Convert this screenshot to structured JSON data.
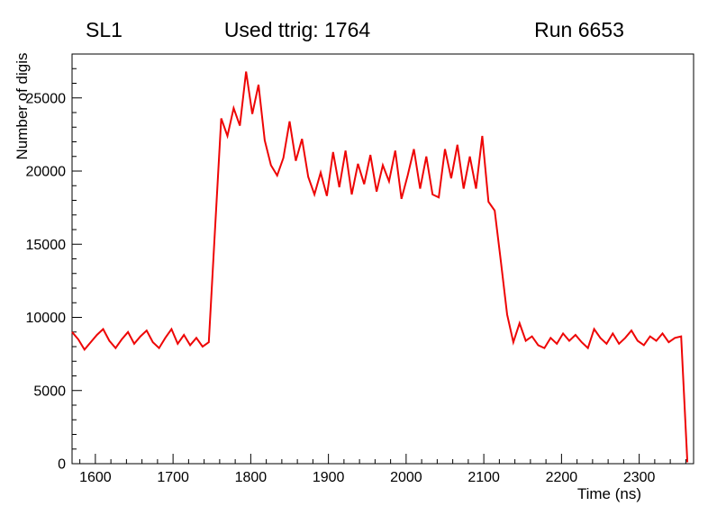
{
  "header": {
    "left": "SL1",
    "right": "Run 6653"
  },
  "chart_data": {
    "type": "line",
    "title": "Used ttrig: 1764",
    "xlabel": "Time (ns)",
    "ylabel": "Number of digis",
    "xlim": [
      1570,
      2370
    ],
    "ylim": [
      0,
      28000
    ],
    "x_major_ticks": [
      1600,
      1700,
      1800,
      1900,
      2000,
      2100,
      2200,
      2300
    ],
    "x_minor_step": 20,
    "y_major_ticks": [
      0,
      5000,
      10000,
      15000,
      20000,
      25000
    ],
    "y_minor_step": 1000,
    "grid": false,
    "legend": null,
    "line_color": "#ee0505",
    "axis_color": "#000000",
    "background_color": "#ffffff",
    "x": [
      1570,
      1578,
      1586,
      1594,
      1602,
      1610,
      1618,
      1626,
      1634,
      1642,
      1650,
      1658,
      1666,
      1674,
      1682,
      1690,
      1698,
      1706,
      1714,
      1722,
      1730,
      1738,
      1746,
      1754,
      1762,
      1770,
      1778,
      1786,
      1794,
      1802,
      1810,
      1818,
      1826,
      1834,
      1842,
      1850,
      1858,
      1866,
      1874,
      1882,
      1890,
      1898,
      1906,
      1914,
      1922,
      1930,
      1938,
      1946,
      1954,
      1962,
      1970,
      1978,
      1986,
      1994,
      2002,
      2010,
      2018,
      2026,
      2034,
      2042,
      2050,
      2058,
      2066,
      2074,
      2082,
      2090,
      2098,
      2106,
      2114,
      2122,
      2130,
      2138,
      2146,
      2154,
      2162,
      2170,
      2178,
      2186,
      2194,
      2202,
      2210,
      2218,
      2226,
      2234,
      2242,
      2250,
      2258,
      2266,
      2274,
      2282,
      2290,
      2298,
      2306,
      2314,
      2322,
      2330,
      2338,
      2346,
      2354,
      2362
    ],
    "y": [
      9000,
      8500,
      7800,
      8300,
      8800,
      9200,
      8400,
      7900,
      8500,
      9000,
      8200,
      8700,
      9100,
      8300,
      7900,
      8600,
      9200,
      8200,
      8800,
      8100,
      8600,
      8000,
      8300,
      16000,
      23600,
      22400,
      24300,
      23100,
      26800,
      23900,
      25900,
      22100,
      20400,
      19700,
      20900,
      23400,
      20700,
      22200,
      19600,
      18400,
      19900,
      18300,
      21300,
      18900,
      21400,
      18400,
      20500,
      19100,
      21100,
      18600,
      20400,
      19300,
      21400,
      18100,
      19700,
      21500,
      18800,
      21000,
      18400,
      18200,
      21500,
      19500,
      21800,
      18800,
      21000,
      18800,
      22400,
      17900,
      17300,
      13800,
      10200,
      8300,
      9600,
      8400,
      8700,
      8100,
      7900,
      8600,
      8200,
      8900,
      8400,
      8800,
      8300,
      7900,
      9200,
      8600,
      8200,
      8900,
      8200,
      8600,
      9100,
      8400,
      8100,
      8700,
      8400,
      8900,
      8300,
      8600,
      8700,
      100
    ]
  }
}
